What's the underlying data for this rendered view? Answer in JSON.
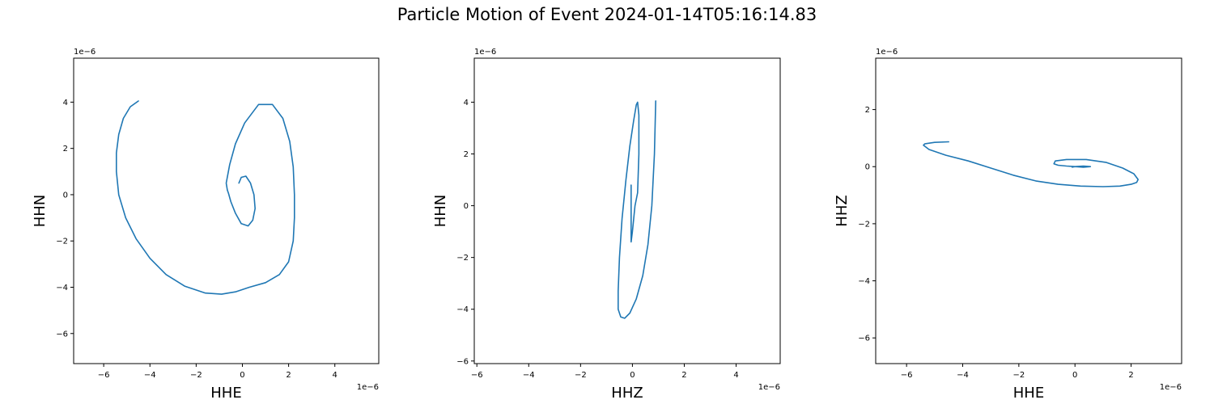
{
  "title": "Particle Motion of Event 2024-01-14T05:16:14.83",
  "chart_data": [
    {
      "type": "line",
      "xlabel": "HHE",
      "ylabel": "HHN",
      "x_offset_label": "1e−6",
      "y_offset_label": "1e−6",
      "xlim": [
        -7.3,
        5.9
      ],
      "ylim": [
        -7.3,
        5.9
      ],
      "xticks": [
        -6,
        -4,
        -2,
        0,
        2,
        4
      ],
      "yticks": [
        -6,
        -4,
        -2,
        0,
        2,
        4
      ],
      "xtick_labels": [
        "−6",
        "−4",
        "−2",
        "0",
        "2",
        "4"
      ],
      "ytick_labels": [
        "−6",
        "−4",
        "−2",
        "0",
        "2",
        "4"
      ],
      "color": "#1f77b4",
      "x": [
        -4.5,
        -4.85,
        -5.15,
        -5.35,
        -5.45,
        -5.45,
        -5.35,
        -5.05,
        -4.6,
        -4.0,
        -3.3,
        -2.5,
        -1.6,
        -0.9,
        -0.3,
        0.3,
        1.0,
        1.6,
        2.0,
        2.2,
        2.25,
        2.25,
        2.2,
        2.05,
        1.75,
        1.3,
        0.7,
        0.1,
        -0.3,
        -0.55,
        -0.7,
        -0.65,
        -0.6,
        -0.5,
        -0.3,
        -0.05,
        0.25,
        0.45,
        0.55,
        0.5,
        0.35,
        0.15,
        -0.05,
        -0.15
      ],
      "y": [
        4.05,
        3.8,
        3.3,
        2.6,
        1.8,
        1.0,
        0.0,
        -1.0,
        -1.9,
        -2.75,
        -3.45,
        -3.95,
        -4.25,
        -4.3,
        -4.2,
        -4.0,
        -3.8,
        -3.45,
        -2.9,
        -2.0,
        -1.0,
        0.0,
        1.2,
        2.3,
        3.3,
        3.9,
        3.9,
        3.1,
        2.2,
        1.3,
        0.5,
        0.2,
        0.05,
        -0.3,
        -0.8,
        -1.25,
        -1.35,
        -1.1,
        -0.6,
        0.0,
        0.5,
        0.8,
        0.75,
        0.5
      ]
    },
    {
      "type": "line",
      "xlabel": "HHZ",
      "ylabel": "HHN",
      "x_offset_label": "1e−6",
      "y_offset_label": "1e−6",
      "xlim": [
        -6.1,
        5.7
      ],
      "ylim": [
        -6.1,
        5.7
      ],
      "xticks": [
        -6,
        -4,
        -2,
        0,
        2,
        4
      ],
      "yticks": [
        -6,
        -4,
        -2,
        0,
        2,
        4
      ],
      "xtick_labels": [
        "−6",
        "−4",
        "−2",
        "0",
        "2",
        "4"
      ],
      "ytick_labels": [
        "−6",
        "−4",
        "−2",
        "0",
        "2",
        "4"
      ],
      "color": "#1f77b4",
      "x": [
        0.9,
        0.85,
        0.75,
        0.6,
        0.4,
        0.15,
        -0.1,
        -0.3,
        -0.45,
        -0.55,
        -0.55,
        -0.5,
        -0.4,
        -0.25,
        -0.1,
        0.05,
        0.15,
        0.2,
        0.25,
        0.25,
        0.2,
        0.1,
        0.05,
        0.0,
        -0.05,
        -0.05,
        -0.05,
        -0.05,
        -0.05
      ],
      "y": [
        4.05,
        2.0,
        0.0,
        -1.5,
        -2.7,
        -3.6,
        -4.15,
        -4.35,
        -4.3,
        -4.0,
        -3.3,
        -2.0,
        -0.5,
        1.0,
        2.3,
        3.3,
        3.9,
        4.0,
        3.5,
        2.0,
        0.5,
        0.0,
        -0.5,
        -1.0,
        -1.4,
        -0.8,
        0.0,
        0.5,
        0.8
      ]
    },
    {
      "type": "line",
      "xlabel": "HHE",
      "ylabel": "HHZ",
      "x_offset_label": "1e−6",
      "y_offset_label": "1e−6",
      "xlim": [
        -7.1,
        3.8
      ],
      "ylim": [
        -6.9,
        3.8
      ],
      "xticks": [
        -6,
        -4,
        -2,
        0,
        2
      ],
      "yticks": [
        -6,
        -4,
        -2,
        0,
        2
      ],
      "xtick_labels": [
        "−6",
        "−4",
        "−2",
        "0",
        "2"
      ],
      "ytick_labels": [
        "−6",
        "−4",
        "−2",
        "0",
        "2"
      ],
      "color": "#1f77b4",
      "x": [
        -4.5,
        -5.0,
        -5.35,
        -5.4,
        -5.2,
        -4.6,
        -3.8,
        -3.0,
        -2.2,
        -1.4,
        -0.6,
        0.2,
        1.0,
        1.6,
        2.0,
        2.2,
        2.25,
        2.1,
        1.7,
        1.1,
        0.4,
        -0.3,
        -0.7,
        -0.75,
        -0.6,
        -0.3,
        0.0,
        0.3,
        0.55,
        0.3,
        0.0,
        -0.1
      ],
      "y": [
        0.87,
        0.85,
        0.8,
        0.75,
        0.6,
        0.4,
        0.2,
        -0.05,
        -0.3,
        -0.5,
        -0.62,
        -0.68,
        -0.7,
        -0.68,
        -0.62,
        -0.55,
        -0.45,
        -0.25,
        -0.05,
        0.15,
        0.25,
        0.25,
        0.2,
        0.1,
        0.05,
        0.02,
        0.0,
        -0.02,
        0.0,
        0.02,
        0.0,
        -0.02
      ]
    }
  ]
}
